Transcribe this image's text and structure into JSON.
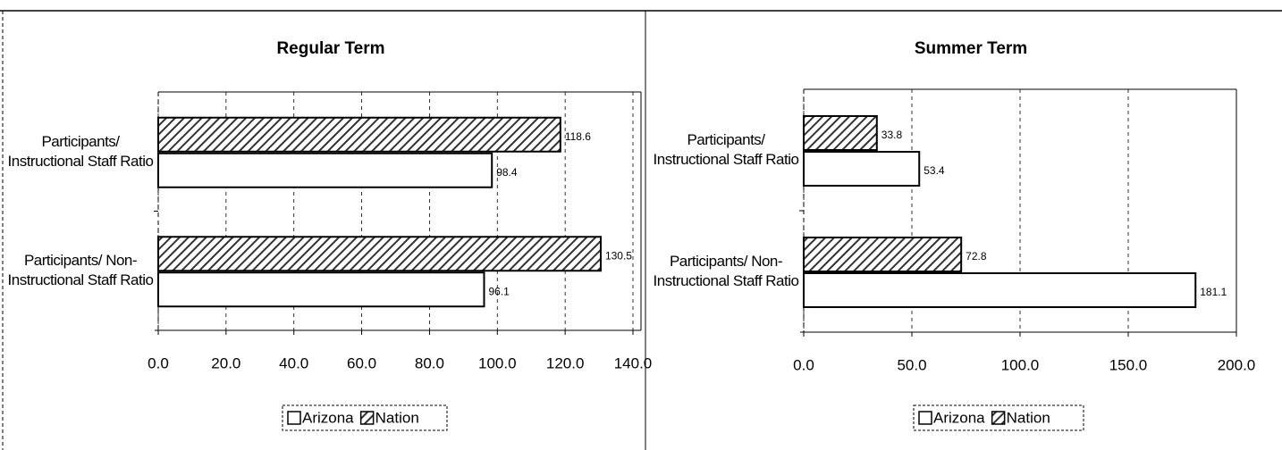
{
  "chart_data": [
    {
      "type": "bar",
      "orientation": "horizontal",
      "title": "Regular Term",
      "categories": [
        "Participants/ Instructional Staff Ratio",
        "Participants/ Non-Instructional Staff Ratio"
      ],
      "series": [
        {
          "name": "Arizona",
          "color": "#ffffff",
          "values": [
            98.4,
            96.1
          ]
        },
        {
          "name": "Nation",
          "color": "#333333",
          "hatch": true,
          "values": [
            118.6,
            130.5
          ]
        }
      ],
      "xlim": [
        0,
        140
      ],
      "xticks": [
        {
          "value": 0,
          "label": "0.0"
        },
        {
          "value": 20,
          "label": "20.0"
        },
        {
          "value": 40,
          "label": "40.0"
        },
        {
          "value": 60,
          "label": "60.0"
        },
        {
          "value": 80,
          "label": "80.0"
        },
        {
          "value": 100,
          "label": "100.0"
        },
        {
          "value": 120,
          "label": "120.0"
        },
        {
          "value": 140,
          "label": "140.0"
        }
      ],
      "grid": true,
      "legend": "bottom"
    },
    {
      "type": "bar",
      "orientation": "horizontal",
      "title": "Summer Term",
      "categories": [
        "Participants/ Instructional Staff Ratio",
        "Participants/ Non-Instructional Staff Ratio"
      ],
      "series": [
        {
          "name": "Arizona",
          "color": "#ffffff",
          "values": [
            53.4,
            181.1
          ]
        },
        {
          "name": "Nation",
          "color": "#333333",
          "hatch": true,
          "values": [
            33.8,
            72.8
          ]
        }
      ],
      "xlim": [
        0,
        200
      ],
      "xticks": [
        {
          "value": 0,
          "label": "0.0"
        },
        {
          "value": 50,
          "label": "50.0"
        },
        {
          "value": 100,
          "label": "100.0"
        },
        {
          "value": 150,
          "label": "150.0"
        },
        {
          "value": 200,
          "label": "200.0"
        }
      ],
      "grid": true,
      "legend": "bottom"
    }
  ]
}
